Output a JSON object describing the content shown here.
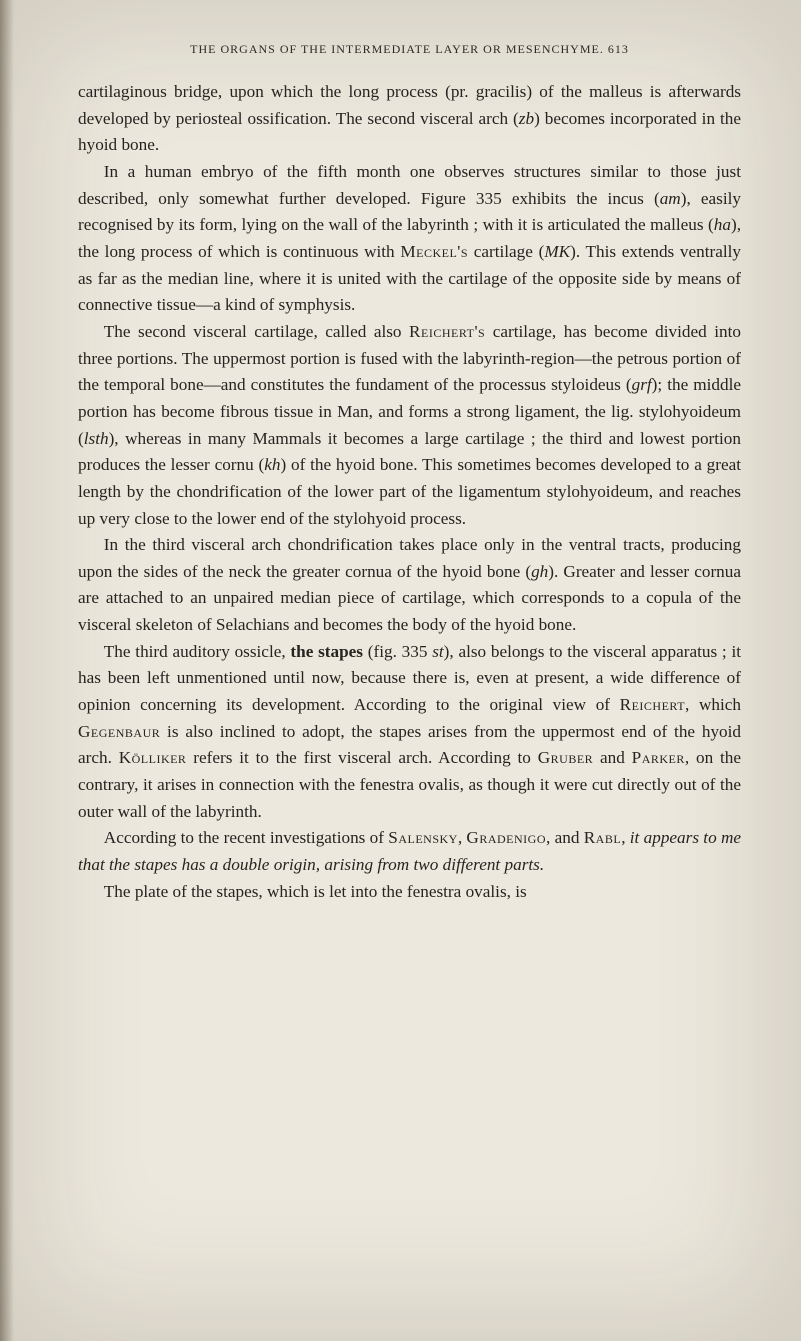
{
  "header": "THE ORGANS OF THE INTERMEDIATE LAYER OR MESENCHYME. 613",
  "p1_a": "cartilaginous bridge, upon which the long process (pr. gracilis) of the malleus is afterwards developed by periosteal ossification. The second visceral arch (",
  "p1_zb": "zb",
  "p1_b": ") becomes incorporated in the hyoid bone.",
  "p2_a": "In a human embryo of the fifth month one observes structures similar to those just described, only somewhat further developed. Figure 335 exhibits the incus (",
  "p2_am": "am",
  "p2_b": "), easily recognised by its form, lying on the wall of the labyrinth ; with it is articulated the malleus (",
  "p2_ha": "ha",
  "p2_c": "), the long process of which is continuous with ",
  "p2_meckel": "Meckel's",
  "p2_d": " cartilage (",
  "p2_mk": "MK",
  "p2_e": "). This extends ventrally as far as the median line, where it is united with the cartilage of the opposite side by means of connective tissue—a kind of symphysis.",
  "p3_a": "The second visceral cartilage, called also ",
  "p3_reichert": "Reichert's",
  "p3_b": " cartilage, has become divided into three portions. The uppermost portion is fused with the labyrinth-region—the petrous portion of the temporal bone—and constitutes the fundament of the processus styloideus (",
  "p3_grf": "grf",
  "p3_c": "); the middle portion has become fibrous tissue in Man, and forms a strong ligament, the lig. stylohyoideum (",
  "p3_lsth": "lsth",
  "p3_d": "), whereas in many Mammals it becomes a large cartilage ; the third and lowest portion produces the lesser cornu (",
  "p3_kh": "kh",
  "p3_e": ") of the hyoid bone. This sometimes becomes developed to a great length by the chondrification of the lower part of the ligamentum stylohyoideum, and reaches up very close to the lower end of the stylohyoid process.",
  "p4_a": "In the third visceral arch chondrification takes place only in the ventral tracts, producing upon the sides of the neck the greater cornua of the hyoid bone (",
  "p4_gh": "gh",
  "p4_b": "). Greater and lesser cornua are attached to an unpaired median piece of cartilage, which corresponds to a copula of the visceral skeleton of Selachians and becomes the body of the hyoid bone.",
  "p5_a": "The third auditory ossicle, ",
  "p5_stapes": "the stapes",
  "p5_b": " (fig. 335 ",
  "p5_st": "st",
  "p5_c": "), also belongs to the visceral apparatus ; it has been left unmentioned until now, because there is, even at present, a wide difference of opinion concerning its development. According to the original view of ",
  "p5_reichert": "Reichert",
  "p5_d": ", which ",
  "p5_gegenbaur": "Gegenbaur",
  "p5_e": " is also inclined to adopt, the stapes arises from the uppermost end of the hyoid arch. ",
  "p5_kolliker": "Kölliker",
  "p5_f": " refers it to the first visceral arch. According to ",
  "p5_gruber": "Gruber",
  "p5_g": " and ",
  "p5_parker": "Parker",
  "p5_h": ", on the contrary, it arises in connection with the fenestra ovalis, as though it were cut directly out of the outer wall of the labyrinth.",
  "p6_a": "According to the recent investigations of ",
  "p6_salensky": "Salensky",
  "p6_b": ", ",
  "p6_gradenigo": "Gradenigo",
  "p6_c": ", and ",
  "p6_rabl": "Rabl",
  "p6_d": ", ",
  "p6_italic": "it appears to me that the stapes has a double origin, arising from two different parts.",
  "p7": "The plate of the stapes, which is let into the fenestra ovalis, is"
}
